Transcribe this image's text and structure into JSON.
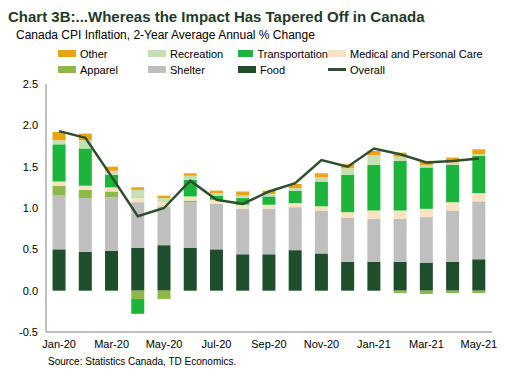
{
  "chart_data": {
    "type": "bar",
    "stacked": true,
    "grid": false,
    "legend": "top",
    "title": "Chart 3B:...Whereas the Impact Has Tapered Off in Canada",
    "subtitle": "Canada CPI Inflation, 2-Year Average Annual % Change",
    "source": "Source: Statistics Canada, TD Economics.",
    "categories": [
      "Jan-20",
      null,
      "Mar-20",
      null,
      "May-20",
      null,
      "Jul-20",
      null,
      "Sep-20",
      null,
      "Nov-20",
      null,
      "Jan-21",
      null,
      "Mar-21",
      null,
      "May-21"
    ],
    "ylim": [
      -0.5,
      2.5
    ],
    "yticks": [
      -0.5,
      {
        "value": 0,
        "label": "0.0"
      },
      0.5,
      {
        "value": 1,
        "label": "1.0"
      },
      1.5,
      {
        "value": 2,
        "label": "2.0"
      },
      2.5
    ],
    "series": [
      {
        "name": "Food",
        "color": "#1f4e2c",
        "values": [
          0.5,
          0.47,
          0.48,
          0.52,
          0.55,
          0.52,
          0.5,
          0.44,
          0.44,
          0.49,
          0.45,
          0.35,
          0.35,
          0.35,
          0.34,
          0.35,
          0.38
        ]
      },
      {
        "name": "Shelter",
        "color": "#bfbfbf",
        "values": [
          0.65,
          0.65,
          0.65,
          0.55,
          0.47,
          0.55,
          0.55,
          0.55,
          0.55,
          0.52,
          0.52,
          0.53,
          0.52,
          0.52,
          0.55,
          0.62,
          0.7
        ]
      },
      {
        "name": "Apparel",
        "color": "#8db84a",
        "values": [
          0.12,
          0.1,
          0.07,
          -0.1,
          -0.1,
          0.02,
          0.0,
          0.0,
          0.0,
          0.0,
          0.0,
          0.0,
          0.0,
          -0.03,
          -0.04,
          -0.03,
          -0.03
        ]
      },
      {
        "name": "Medical and Personal Care",
        "color": "#f8e3c0",
        "values": [
          0.05,
          0.05,
          0.05,
          0.05,
          0.05,
          0.05,
          0.05,
          0.05,
          0.05,
          0.05,
          0.05,
          0.07,
          0.1,
          0.1,
          0.1,
          0.1,
          0.1
        ]
      },
      {
        "name": "Transportation",
        "color": "#1db43c",
        "values": [
          0.45,
          0.45,
          0.15,
          -0.18,
          0.0,
          0.2,
          0.05,
          0.08,
          0.1,
          0.15,
          0.3,
          0.45,
          0.55,
          0.6,
          0.5,
          0.45,
          0.45
        ]
      },
      {
        "name": "Recreation",
        "color": "#c6e0b4",
        "values": [
          0.05,
          0.1,
          0.05,
          0.1,
          0.05,
          0.05,
          0.03,
          0.03,
          0.03,
          0.03,
          0.05,
          0.08,
          0.12,
          0.05,
          0.03,
          0.03,
          0.02
        ]
      },
      {
        "name": "Other",
        "color": "#e8a317",
        "values": [
          0.1,
          0.08,
          0.05,
          0.03,
          0.03,
          0.03,
          0.03,
          0.05,
          0.04,
          0.05,
          0.05,
          0.05,
          0.05,
          0.05,
          0.05,
          0.06,
          0.06
        ]
      },
      {
        "name": "Overall",
        "type": "line",
        "color": "#2e4f2f",
        "values": [
          1.93,
          1.85,
          1.38,
          0.9,
          1.0,
          1.33,
          1.1,
          1.05,
          1.2,
          1.3,
          1.58,
          1.5,
          1.72,
          1.65,
          1.55,
          1.57,
          1.6
        ]
      }
    ]
  }
}
